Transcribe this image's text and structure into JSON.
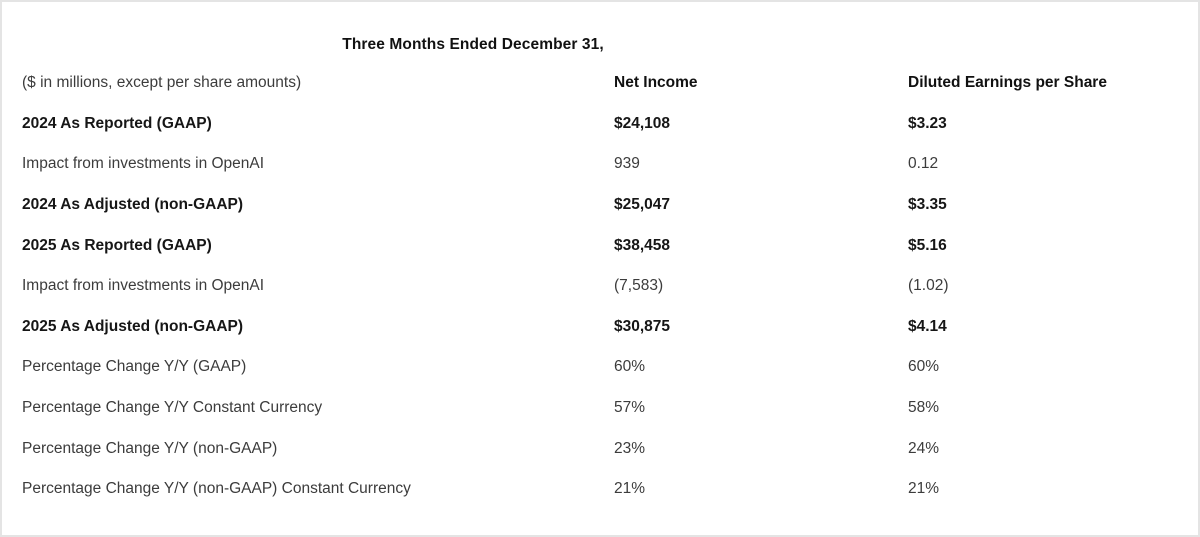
{
  "page": {
    "title": "Three Months Ended December 31,",
    "unit_note": "($ in millions, except per share amounts)",
    "columns": {
      "net_income": "Net Income",
      "diluted_eps": "Diluted Earnings per Share"
    },
    "rows": [
      {
        "label": "2024 As Reported (GAAP)",
        "net_income": "$24,108",
        "diluted_eps": "$3.23",
        "emphasis": "bold"
      },
      {
        "label": "Impact from investments in OpenAI",
        "net_income": "939",
        "diluted_eps": "0.12",
        "emphasis": "regular"
      },
      {
        "label": "2024 As Adjusted (non-GAAP)",
        "net_income": "$25,047",
        "diluted_eps": "$3.35",
        "emphasis": "bold"
      },
      {
        "label": "2025 As Reported (GAAP)",
        "net_income": "$38,458",
        "diluted_eps": "$5.16",
        "emphasis": "bold"
      },
      {
        "label": "Impact from investments in OpenAI",
        "net_income": "(7,583)",
        "diluted_eps": "(1.02)",
        "emphasis": "regular"
      },
      {
        "label": "2025 As Adjusted (non-GAAP)",
        "net_income": "$30,875",
        "diluted_eps": "$4.14",
        "emphasis": "bold"
      },
      {
        "label": "Percentage Change Y/Y (GAAP)",
        "net_income": "60%",
        "diluted_eps": "60%",
        "emphasis": "regular"
      },
      {
        "label": "Percentage Change Y/Y Constant Currency",
        "net_income": "57%",
        "diluted_eps": "58%",
        "emphasis": "regular"
      },
      {
        "label": "Percentage Change Y/Y (non-GAAP)",
        "net_income": "23%",
        "diluted_eps": "24%",
        "emphasis": "regular"
      },
      {
        "label": "Percentage Change Y/Y (non-GAAP) Constant Currency",
        "net_income": "21%",
        "diluted_eps": "21%",
        "emphasis": "regular"
      }
    ]
  }
}
